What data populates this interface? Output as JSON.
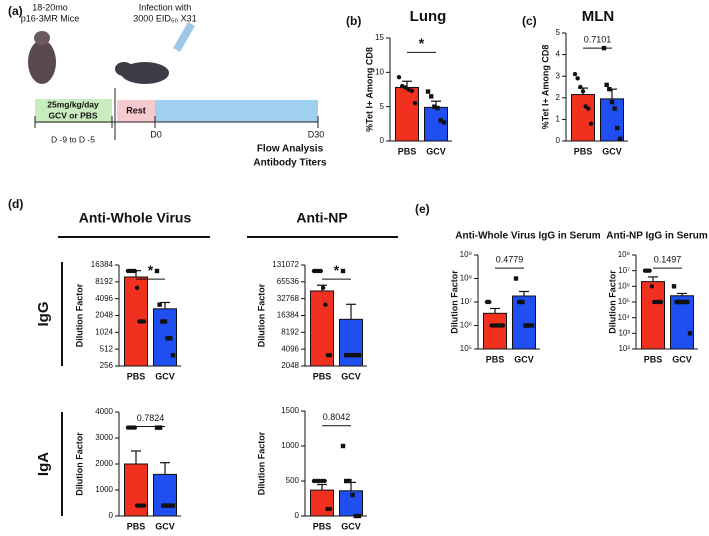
{
  "panel_labels": [
    "(a)",
    "(b)",
    "(c)",
    "(d)",
    "(e)"
  ],
  "diagram": {
    "mice_age": "18-20mo",
    "mice_strain": "p16-3MR Mice",
    "infection_line1": "Infection with",
    "infection_line2": "3000 EID₅₀ X31",
    "dose": "25mg/kg/day",
    "drug": "GCV or PBS",
    "dose_days": "D -9 to D -5",
    "rest": "Rest",
    "day0": "D0",
    "day30": "D30",
    "readout1": "Flow Analysis",
    "readout2": "Antibody Titers"
  },
  "panel_d": {
    "header_left": "Anti-Whole Virus",
    "header_right": "Anti-NP",
    "row_igg": "IgG",
    "row_iga": "IgA"
  },
  "chart_data": [
    {
      "type": "bar",
      "title": "Lung",
      "ylabel": "%Tet I+ Among CD8",
      "categories": [
        "PBS",
        "GCV"
      ],
      "colors": [
        "#f1301f",
        "#1f4ff0"
      ],
      "values": [
        7.8,
        4.9
      ],
      "errors": [
        0.9,
        0.9
      ],
      "points": [
        [
          9.3,
          8,
          7.8,
          7.5,
          7.3,
          5.5
        ],
        [
          7.2,
          6.5,
          5,
          4.8,
          3,
          2.7
        ]
      ],
      "ylim": [
        0,
        15
      ],
      "yticks": [
        0,
        5,
        10,
        15
      ],
      "annotation": "*"
    },
    {
      "type": "bar",
      "title": "MLN",
      "ylabel": "%Tet I+ Among CD8",
      "categories": [
        "PBS",
        "GCV"
      ],
      "colors": [
        "#f1301f",
        "#1f4ff0"
      ],
      "values": [
        2.15,
        1.95
      ],
      "errors": [
        0.3,
        0.45
      ],
      "points": [
        [
          3.1,
          2.9,
          2.5,
          2.3,
          1.6,
          1.5,
          0.8
        ],
        [
          4.3,
          2.6,
          2.4,
          1.8,
          1.5,
          0.6,
          0.1
        ]
      ],
      "ylim": [
        0,
        5
      ],
      "yticks": [
        0,
        1,
        2,
        3,
        4,
        5
      ],
      "annotation": "0.7101"
    },
    {
      "type": "bar",
      "ylabel": "Dilution Factor",
      "categories": [
        "PBS",
        "GCV"
      ],
      "colors": [
        "#f1301f",
        "#1f4ff0"
      ],
      "values": [
        10000,
        2700
      ],
      "errors": [
        3000,
        800
      ],
      "points": [
        [
          12800,
          12800,
          12800,
          12800,
          6400,
          1600,
          1600,
          1600
        ],
        [
          12800,
          3200,
          1600,
          1600,
          800,
          800,
          400
        ]
      ],
      "ylim": [
        256,
        16384
      ],
      "yticks": [
        256,
        512,
        1024,
        2048,
        4096,
        8192,
        16384
      ],
      "log_base": 2,
      "annotation": "*"
    },
    {
      "type": "bar",
      "ylabel": "Dilution Factor",
      "categories": [
        "PBS",
        "GCV"
      ],
      "colors": [
        "#f1301f",
        "#1f4ff0"
      ],
      "values": [
        45000,
        14000
      ],
      "errors": [
        12000,
        12000
      ],
      "points": [
        [
          102400,
          102400,
          102400,
          102400,
          51200,
          25600,
          3200,
          3200
        ],
        [
          102400,
          3200,
          3200,
          3200,
          3200,
          3200
        ]
      ],
      "ylim": [
        2048,
        131072
      ],
      "yticks": [
        2048,
        4096,
        8192,
        16384,
        32768,
        65536,
        131072
      ],
      "log_base": 2,
      "annotation": "*"
    },
    {
      "type": "bar",
      "ylabel": "Dilution Factor",
      "categories": [
        "PBS",
        "GCV"
      ],
      "colors": [
        "#f1301f",
        "#1f4ff0"
      ],
      "values": [
        2000,
        1600
      ],
      "errors": [
        500,
        450
      ],
      "points": [
        [
          3400,
          3400,
          3400,
          3400,
          400,
          400,
          400,
          400
        ],
        [
          3400,
          3400,
          400,
          400,
          400,
          400
        ]
      ],
      "ylim": [
        0,
        4000
      ],
      "yticks": [
        0,
        1000,
        2000,
        3000,
        4000
      ],
      "annotation": "0.7824"
    },
    {
      "type": "bar",
      "ylabel": "Dilution Factor",
      "categories": [
        "PBS",
        "GCV"
      ],
      "colors": [
        "#f1301f",
        "#1f4ff0"
      ],
      "values": [
        370,
        360
      ],
      "errors": [
        80,
        120
      ],
      "points": [
        [
          500,
          500,
          500,
          500,
          500,
          100,
          100
        ],
        [
          1000,
          500,
          500,
          300,
          0,
          0
        ]
      ],
      "ylim": [
        0,
        1500
      ],
      "yticks": [
        0,
        500,
        1000,
        1500
      ],
      "annotation": "0.8042"
    },
    {
      "type": "bar",
      "title": "Anti-Whole Virus IgG in Serum",
      "ylabel": "Dilution Factor",
      "categories": [
        "PBS",
        "GCV"
      ],
      "colors": [
        "#f1301f",
        "#1f4ff0"
      ],
      "values": [
        3300000,
        18000000
      ],
      "errors": [
        2000000,
        10000000
      ],
      "points": [
        [
          10000000,
          10000000,
          1000000,
          1000000,
          1000000,
          1000000,
          1000000,
          1000000
        ],
        [
          100000000,
          10000000,
          10000000,
          1000000,
          1000000,
          1000000
        ]
      ],
      "ylim": [
        100000,
        1000000000
      ],
      "yticks": [
        {
          "value": 100000,
          "label": "10⁵"
        },
        {
          "value": 1000000,
          "label": "10⁶"
        },
        {
          "value": 10000000,
          "label": "10⁷"
        },
        {
          "value": 100000000,
          "label": "10⁸"
        },
        {
          "value": 1000000000,
          "label": "10⁹"
        }
      ],
      "log_base": 10,
      "annotation": "0.4779"
    },
    {
      "type": "bar",
      "title": "Anti-NP IgG in Serum",
      "ylabel": "Dilution Factor",
      "categories": [
        "PBS",
        "GCV"
      ],
      "colors": [
        "#f1301f",
        "#1f4ff0"
      ],
      "values": [
        2000000,
        250000
      ],
      "errors": [
        2000000,
        100000
      ],
      "points": [
        [
          10000000,
          10000000,
          10000000,
          1000000,
          100000,
          100000,
          100000,
          100000
        ],
        [
          1000000,
          100000,
          100000,
          100000,
          100000,
          100000,
          1000
        ]
      ],
      "ylim": [
        100,
        100000000
      ],
      "yticks": [
        {
          "value": 100,
          "label": "10²"
        },
        {
          "value": 1000,
          "label": "10³"
        },
        {
          "value": 10000,
          "label": "10⁴"
        },
        {
          "value": 100000,
          "label": "10⁵"
        },
        {
          "value": 1000000,
          "label": "10⁶"
        },
        {
          "value": 10000000,
          "label": "10⁷"
        },
        {
          "value": 100000000,
          "label": "10⁸"
        }
      ],
      "log_base": 10,
      "annotation": "0.1497"
    }
  ]
}
